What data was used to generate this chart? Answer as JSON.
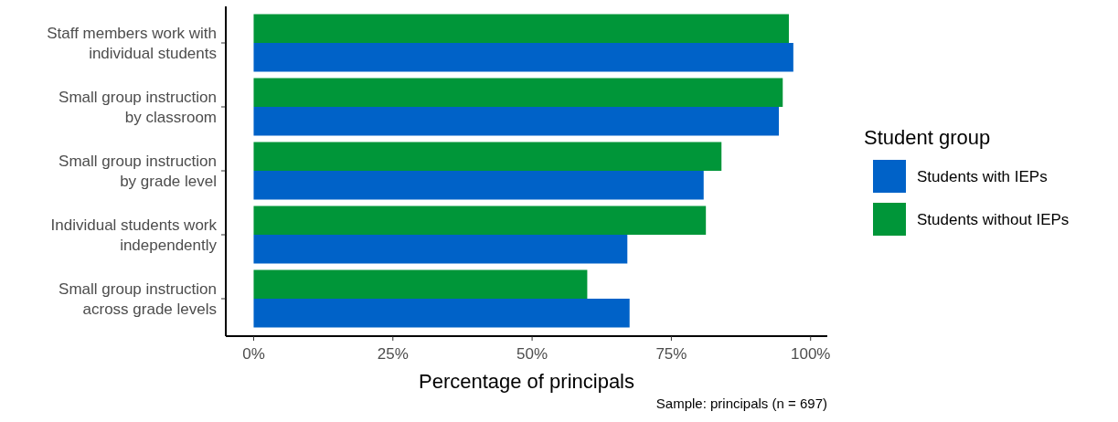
{
  "chart_data": {
    "type": "bar",
    "orientation": "horizontal",
    "xlabel": "Percentage of principals",
    "legend_title": "Student group",
    "legend": "right",
    "categories": [
      "Staff members work with individual students",
      "Small group instruction by classroom",
      "Small group instruction by grade level",
      "Individual students work independently",
      "Small group instruction across grade levels"
    ],
    "series": [
      {
        "name": "Students with IEPs",
        "color": "#0062c8",
        "values": [
          96.9,
          94.3,
          80.8,
          67.1,
          67.5
        ]
      },
      {
        "name": "Students without IEPs",
        "color": "#009639",
        "values": [
          96.1,
          95.0,
          84.0,
          81.2,
          59.9
        ]
      }
    ],
    "xlim": [
      -5,
      103
    ],
    "xticks": [
      {
        "value": 0,
        "label": "0%"
      },
      {
        "value": 25,
        "label": "25%"
      },
      {
        "value": 50,
        "label": "50%"
      },
      {
        "value": 75,
        "label": "75%"
      },
      {
        "value": 100,
        "label": "100%"
      }
    ],
    "grid": false,
    "annotations": [
      "Sample: principals (n = 697)"
    ]
  }
}
